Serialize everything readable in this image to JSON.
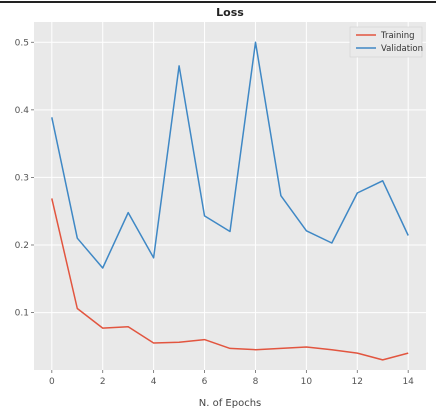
{
  "chart_data": {
    "type": "line",
    "title": "Loss",
    "xlabel": "N. of Epochs",
    "ylabel": "",
    "x": [
      0,
      1,
      2,
      3,
      4,
      5,
      6,
      7,
      8,
      9,
      10,
      11,
      12,
      13,
      14
    ],
    "xticks": [
      0,
      2,
      4,
      6,
      8,
      10,
      12,
      14
    ],
    "yticks": [
      0.1,
      0.2,
      0.3,
      0.4,
      0.5
    ],
    "ytick_labels": [
      "0.1",
      "0.2",
      "0.3",
      "0.4",
      "0.5"
    ],
    "xlim": [
      -0.7,
      14.7
    ],
    "ylim": [
      0.015,
      0.53
    ],
    "grid": true,
    "legend_position": "top-right",
    "series": [
      {
        "name": "Training",
        "color": "#e2553f",
        "values": [
          0.269,
          0.106,
          0.077,
          0.079,
          0.055,
          0.056,
          0.06,
          0.047,
          0.045,
          0.047,
          0.049,
          0.045,
          0.04,
          0.03,
          0.04
        ]
      },
      {
        "name": "Validation",
        "color": "#3f88c5",
        "values": [
          0.389,
          0.21,
          0.166,
          0.248,
          0.181,
          0.465,
          0.243,
          0.22,
          0.5,
          0.273,
          0.221,
          0.203,
          0.277,
          0.295,
          0.214
        ]
      }
    ]
  }
}
